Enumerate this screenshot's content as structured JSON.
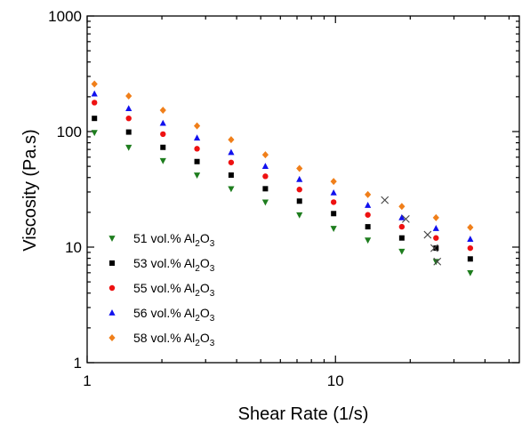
{
  "chart_data": {
    "type": "scatter",
    "xlabel": "Shear Rate (1/s)",
    "ylabel": "Viscosity (Pa.s)",
    "x_scale": "log",
    "y_scale": "log",
    "xlim": [
      1,
      55
    ],
    "ylim": [
      1,
      1000
    ],
    "x_ticks": [
      {
        "value": 1,
        "label": "1"
      },
      {
        "value": 10,
        "label": "10"
      }
    ],
    "y_ticks": [
      {
        "value": 1,
        "label": "1"
      },
      {
        "value": 10,
        "label": "10"
      },
      {
        "value": 100,
        "label": "100"
      },
      {
        "value": 1000,
        "label": "1000"
      }
    ],
    "grid": false,
    "legend_position": "bottom-left",
    "series": [
      {
        "name_main": "51 vol.% Al",
        "name_sub": "2",
        "name_tail": "O",
        "name_sub2": "3",
        "marker": "triangle-down",
        "color": "#1e7d1e",
        "points": [
          [
            1.07,
            98
          ],
          [
            1.47,
            73
          ],
          [
            2.02,
            56
          ],
          [
            2.77,
            42
          ],
          [
            3.8,
            32
          ],
          [
            5.22,
            24.5
          ],
          [
            7.16,
            19
          ],
          [
            9.83,
            14.5
          ],
          [
            13.5,
            11.5
          ],
          [
            18.5,
            9.2
          ],
          [
            25.4,
            7.5
          ],
          [
            34.9,
            6
          ]
        ]
      },
      {
        "name_main": "53 vol.% Al",
        "name_sub": "2",
        "name_tail": "O",
        "name_sub2": "3",
        "marker": "square",
        "color": "#000000",
        "points": [
          [
            1.07,
            130
          ],
          [
            1.47,
            99
          ],
          [
            2.02,
            73
          ],
          [
            2.77,
            55
          ],
          [
            3.8,
            42
          ],
          [
            5.22,
            32
          ],
          [
            7.16,
            25
          ],
          [
            9.83,
            19.5
          ],
          [
            13.5,
            15
          ],
          [
            18.5,
            12
          ],
          [
            25.4,
            9.8
          ],
          [
            34.9,
            7.9
          ]
        ]
      },
      {
        "name_main": "55 vol.% Al",
        "name_sub": "2",
        "name_tail": "O",
        "name_sub2": "3",
        "marker": "circle",
        "color": "#ee1111",
        "points": [
          [
            1.07,
            178
          ],
          [
            1.47,
            130
          ],
          [
            2.02,
            95
          ],
          [
            2.77,
            71
          ],
          [
            3.8,
            54
          ],
          [
            5.22,
            41
          ],
          [
            7.16,
            31.5
          ],
          [
            9.83,
            24.5
          ],
          [
            13.5,
            19
          ],
          [
            18.5,
            15
          ],
          [
            25.4,
            12
          ],
          [
            34.9,
            9.8
          ]
        ]
      },
      {
        "name_main": "56 vol.% Al",
        "name_sub": "2",
        "name_tail": "O",
        "name_sub2": "3",
        "marker": "triangle-up",
        "color": "#1111ee",
        "points": [
          [
            1.07,
            212
          ],
          [
            1.47,
            158
          ],
          [
            2.02,
            118
          ],
          [
            2.77,
            88
          ],
          [
            3.8,
            66
          ],
          [
            5.22,
            50
          ],
          [
            7.16,
            38.5
          ],
          [
            9.83,
            29.5
          ],
          [
            13.5,
            23
          ],
          [
            18.5,
            18
          ],
          [
            25.4,
            14.5
          ],
          [
            34.9,
            11.7
          ]
        ]
      },
      {
        "name_main": "58 vol.% Al",
        "name_sub": "2",
        "name_tail": "O",
        "name_sub2": "3",
        "marker": "diamond",
        "color": "#f07f1a",
        "points": [
          [
            1.07,
            258
          ],
          [
            1.47,
            203
          ],
          [
            2.02,
            153
          ],
          [
            2.77,
            112
          ],
          [
            3.8,
            85
          ],
          [
            5.22,
            63
          ],
          [
            7.16,
            48
          ],
          [
            9.83,
            37
          ],
          [
            13.5,
            28.5
          ],
          [
            18.5,
            22.5
          ],
          [
            25.4,
            18
          ],
          [
            34.9,
            14.8
          ]
        ]
      },
      {
        "name": "",
        "marker": "x",
        "color": "#444444",
        "in_legend": false,
        "points": [
          [
            15.8,
            25.5
          ],
          [
            19.2,
            17.5
          ],
          [
            23.5,
            12.8
          ],
          [
            25.0,
            9.8
          ],
          [
            25.7,
            7.5
          ]
        ]
      }
    ]
  }
}
